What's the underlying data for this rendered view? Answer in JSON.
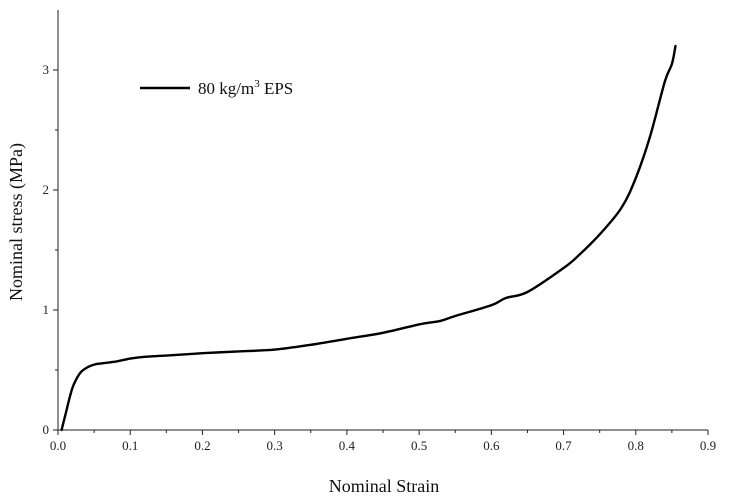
{
  "chart_data": {
    "type": "line",
    "xlabel": "Nominal Strain",
    "ylabel": "Nominal stress (MPa)",
    "xlim": [
      0,
      0.9
    ],
    "ylim": [
      0,
      3.5
    ],
    "xticks": [
      "0.0",
      "0.1",
      "0.2",
      "0.3",
      "0.4",
      "0.5",
      "0.6",
      "0.7",
      "0.8",
      "0.9"
    ],
    "yticks": [
      "0",
      "1",
      "2",
      "3"
    ],
    "grid": false,
    "legend_position": "top-left",
    "series": [
      {
        "name_main": "80 kg/m",
        "name_sup": "3",
        "name_tail": " EPS",
        "color": "#000000",
        "x": [
          0.005,
          0.01,
          0.02,
          0.03,
          0.04,
          0.05,
          0.06,
          0.08,
          0.1,
          0.12,
          0.15,
          0.2,
          0.25,
          0.3,
          0.35,
          0.4,
          0.45,
          0.5,
          0.53,
          0.55,
          0.6,
          0.62,
          0.65,
          0.7,
          0.72,
          0.75,
          0.78,
          0.8,
          0.82,
          0.84,
          0.85,
          0.855
        ],
        "y": [
          0.0,
          0.12,
          0.35,
          0.47,
          0.52,
          0.545,
          0.555,
          0.57,
          0.595,
          0.61,
          0.62,
          0.64,
          0.655,
          0.67,
          0.71,
          0.76,
          0.81,
          0.88,
          0.91,
          0.95,
          1.04,
          1.1,
          1.15,
          1.35,
          1.45,
          1.63,
          1.85,
          2.1,
          2.45,
          2.9,
          3.05,
          3.2
        ]
      }
    ]
  }
}
